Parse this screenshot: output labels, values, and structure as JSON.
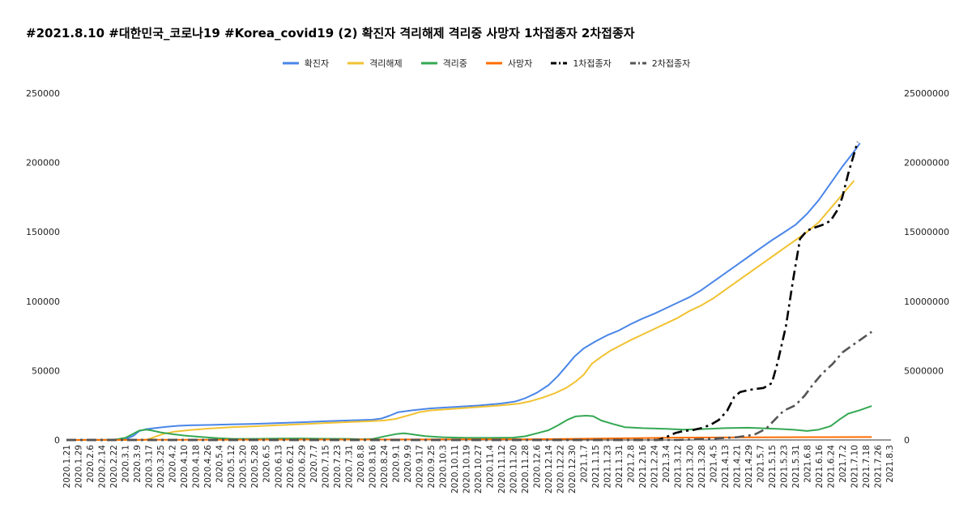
{
  "chart_data": {
    "type": "line",
    "title": "#2021.8.10 #대한민국_코로나19 #Korea_covid19 (2) 확진자 격리해제 격리중 사망자 1차접종자 2차접종자",
    "legend_position": "top",
    "grid": false,
    "x_tick_labels": [
      "2020.1.21",
      "2020.1.29",
      "2020.2.6",
      "2020.2.14",
      "2020.2.22",
      "2020.3.1",
      "2020.3.9",
      "2020.3.17",
      "2020.3.25",
      "2020.4.2",
      "2020.4.10",
      "2020.4.18",
      "2020.4.26",
      "2020.5.4",
      "2020.5.12",
      "2020.5.20",
      "2020.5.28",
      "2020.6.5",
      "2020.6.13",
      "2020.6.21",
      "2020.6.29",
      "2020.7.7",
      "2020.7.15",
      "2020.7.23",
      "2020.7.31",
      "2020.8.8",
      "2020.8.16",
      "2020.8.24",
      "2020.9.1",
      "2020.9.9",
      "2020.9.17",
      "2020.9.25",
      "2020.10.3",
      "2020.10.11",
      "2020.10.19",
      "2020.10.27",
      "2020.11.4",
      "2020.11.12",
      "2020.11.20",
      "2020.11.28",
      "2020.12.6",
      "2020.12.14",
      "2020.12.22",
      "2020.12.30",
      "2021.1.7",
      "2021.1.15",
      "2021.1.23",
      "2021.1.31",
      "2021.2.8",
      "2021.2.16",
      "2021.2.24",
      "2021.3.4",
      "2021.3.12",
      "2021.3.20",
      "2021.3.28",
      "2021.4.5",
      "2021.4.13",
      "2021.4.21",
      "2021.4.29",
      "2021.5.7",
      "2021.5.15",
      "2021.5.23",
      "2021.5.31",
      "2021.6.8",
      "2021.6.16",
      "2021.6.24",
      "2021.7.2",
      "2021.7.10",
      "2021.7.18",
      "2021.7.26",
      "2021.8.3"
    ],
    "y_left": {
      "min": 0,
      "max": 250000,
      "ticks": [
        "0",
        "50000",
        "100000",
        "150000",
        "200000",
        "250000"
      ]
    },
    "y_right": {
      "min": 0,
      "max": 25000000,
      "ticks": [
        "0",
        "5000000",
        "10000000",
        "15000000",
        "20000000",
        "25000000"
      ]
    },
    "series": [
      {
        "name": "확진자",
        "color": "#4a86e8",
        "axis": "left",
        "dash": "solid",
        "points": [
          [
            0,
            0
          ],
          [
            4,
            50
          ],
          [
            5,
            500
          ],
          [
            5.7,
            3000
          ],
          [
            6.2,
            6500
          ],
          [
            6.8,
            7800
          ],
          [
            7.5,
            8500
          ],
          [
            8.5,
            9500
          ],
          [
            9.5,
            10200
          ],
          [
            10.5,
            10600
          ],
          [
            12,
            10800
          ],
          [
            14,
            11200
          ],
          [
            16,
            11600
          ],
          [
            18,
            12200
          ],
          [
            20,
            12800
          ],
          [
            22,
            13500
          ],
          [
            24,
            14100
          ],
          [
            26,
            14600
          ],
          [
            26.8,
            15500
          ],
          [
            27.5,
            17500
          ],
          [
            28.2,
            20000
          ],
          [
            29.5,
            21500
          ],
          [
            31,
            22800
          ],
          [
            33,
            23800
          ],
          [
            35,
            24800
          ],
          [
            37,
            26300
          ],
          [
            38.2,
            27800
          ],
          [
            39,
            30000
          ],
          [
            40,
            34000
          ],
          [
            41,
            39500
          ],
          [
            41.8,
            46000
          ],
          [
            42.5,
            53000
          ],
          [
            43.2,
            60000
          ],
          [
            44,
            66000
          ],
          [
            45,
            71000
          ],
          [
            46,
            75500
          ],
          [
            47,
            79000
          ],
          [
            48,
            83500
          ],
          [
            49,
            87500
          ],
          [
            50,
            91000
          ],
          [
            51,
            95000
          ],
          [
            52,
            99000
          ],
          [
            53,
            103000
          ],
          [
            54,
            108000
          ],
          [
            55,
            114000
          ],
          [
            56,
            120000
          ],
          [
            57,
            126000
          ],
          [
            58,
            132000
          ],
          [
            59,
            138000
          ],
          [
            60,
            144000
          ],
          [
            61,
            149500
          ],
          [
            62,
            155000
          ],
          [
            63,
            163000
          ],
          [
            64,
            173000
          ],
          [
            65,
            185000
          ],
          [
            66,
            197000
          ],
          [
            67,
            208000
          ],
          [
            67.5,
            214000
          ]
        ]
      },
      {
        "name": "격리해제",
        "color": "#f1c232",
        "axis": "left",
        "dash": "solid",
        "points": [
          [
            0,
            0
          ],
          [
            6.5,
            0
          ],
          [
            7,
            500
          ],
          [
            7.6,
            2500
          ],
          [
            8.3,
            4500
          ],
          [
            9.2,
            6000
          ],
          [
            10.5,
            7200
          ],
          [
            12,
            8200
          ],
          [
            14,
            9200
          ],
          [
            16,
            9900
          ],
          [
            18,
            10700
          ],
          [
            20,
            11400
          ],
          [
            22,
            12200
          ],
          [
            24,
            12900
          ],
          [
            26,
            13600
          ],
          [
            27,
            14000
          ],
          [
            28,
            15200
          ],
          [
            29,
            17500
          ],
          [
            30,
            20000
          ],
          [
            31,
            21300
          ],
          [
            33,
            22500
          ],
          [
            35,
            23700
          ],
          [
            37,
            25000
          ],
          [
            38.5,
            26200
          ],
          [
            39.5,
            28000
          ],
          [
            40.5,
            30500
          ],
          [
            41.5,
            33500
          ],
          [
            42.5,
            37500
          ],
          [
            43.3,
            42000
          ],
          [
            44,
            47000
          ],
          [
            44.7,
            55000
          ],
          [
            45.5,
            60000
          ],
          [
            46.3,
            64500
          ],
          [
            47.2,
            68500
          ],
          [
            48,
            72000
          ],
          [
            49,
            76000
          ],
          [
            50,
            80000
          ],
          [
            51,
            84000
          ],
          [
            52,
            88000
          ],
          [
            53,
            93000
          ],
          [
            54,
            97000
          ],
          [
            55,
            102000
          ],
          [
            56,
            108000
          ],
          [
            57,
            114000
          ],
          [
            58,
            120000
          ],
          [
            59,
            126000
          ],
          [
            60,
            132000
          ],
          [
            61,
            138000
          ],
          [
            62,
            144000
          ],
          [
            63,
            150000
          ],
          [
            64,
            157000
          ],
          [
            65,
            167000
          ],
          [
            66,
            177000
          ],
          [
            67,
            187000
          ]
        ]
      },
      {
        "name": "격리중",
        "color": "#34a853",
        "axis": "left",
        "dash": "solid",
        "points": [
          [
            0,
            0
          ],
          [
            4,
            50
          ],
          [
            5,
            1500
          ],
          [
            5.7,
            4500
          ],
          [
            6.2,
            6800
          ],
          [
            6.8,
            7400
          ],
          [
            7.3,
            6800
          ],
          [
            8,
            5500
          ],
          [
            9,
            4200
          ],
          [
            10,
            3200
          ],
          [
            11,
            2500
          ],
          [
            12,
            1800
          ],
          [
            13,
            1200
          ],
          [
            14,
            900
          ],
          [
            16,
            800
          ],
          [
            18,
            1000
          ],
          [
            20,
            1100
          ],
          [
            22,
            900
          ],
          [
            24,
            800
          ],
          [
            25,
            500
          ],
          [
            26,
            700
          ],
          [
            27,
            2500
          ],
          [
            28,
            4200
          ],
          [
            28.7,
            4800
          ],
          [
            29.5,
            4000
          ],
          [
            30.5,
            2800
          ],
          [
            32,
            2000
          ],
          [
            34,
            1500
          ],
          [
            36,
            1500
          ],
          [
            38,
            1700
          ],
          [
            39,
            2600
          ],
          [
            40,
            4800
          ],
          [
            41,
            7000
          ],
          [
            41.8,
            10500
          ],
          [
            42.6,
            14500
          ],
          [
            43.3,
            17000
          ],
          [
            44.2,
            17500
          ],
          [
            44.8,
            17200
          ],
          [
            45.5,
            14000
          ],
          [
            46.5,
            11500
          ],
          [
            47.5,
            9200
          ],
          [
            49,
            8500
          ],
          [
            51,
            8000
          ],
          [
            52.5,
            7400
          ],
          [
            54,
            7800
          ],
          [
            56,
            8500
          ],
          [
            58,
            8800
          ],
          [
            59.5,
            8300
          ],
          [
            61,
            7800
          ],
          [
            62,
            7300
          ],
          [
            63,
            6500
          ],
          [
            64,
            7500
          ],
          [
            65,
            10000
          ],
          [
            65.8,
            15000
          ],
          [
            66.5,
            19000
          ],
          [
            67.5,
            21500
          ],
          [
            68,
            23000
          ],
          [
            68.5,
            24500
          ]
        ]
      },
      {
        "name": "사망자",
        "color": "#ff6d01",
        "axis": "left",
        "dash": "solid",
        "points": [
          [
            0,
            0
          ],
          [
            8,
            100
          ],
          [
            16,
            260
          ],
          [
            24,
            300
          ],
          [
            32,
            400
          ],
          [
            40,
            550
          ],
          [
            46,
            1100
          ],
          [
            52,
            1700
          ],
          [
            58,
            1850
          ],
          [
            64,
            2020
          ],
          [
            68.5,
            2120
          ]
        ]
      },
      {
        "name": "1차접종자",
        "color": "#000000",
        "axis": "right",
        "dash": "dashdot",
        "points": [
          [
            0,
            0
          ],
          [
            50.3,
            0
          ],
          [
            51,
            200000
          ],
          [
            51.8,
            500000
          ],
          [
            52.5,
            650000
          ],
          [
            53.3,
            720000
          ],
          [
            54,
            850000
          ],
          [
            54.8,
            1100000
          ],
          [
            55.5,
            1450000
          ],
          [
            56.2,
            2100000
          ],
          [
            56.8,
            3100000
          ],
          [
            57.3,
            3450000
          ],
          [
            58,
            3600000
          ],
          [
            58.8,
            3700000
          ],
          [
            59.3,
            3750000
          ],
          [
            60,
            4100000
          ],
          [
            60.5,
            5600000
          ],
          [
            61.2,
            8200000
          ],
          [
            61.8,
            11500000
          ],
          [
            62.4,
            14500000
          ],
          [
            63,
            15100000
          ],
          [
            63.6,
            15300000
          ],
          [
            64.3,
            15500000
          ],
          [
            65,
            15800000
          ],
          [
            65.6,
            16600000
          ],
          [
            66,
            17500000
          ],
          [
            66.5,
            19200000
          ],
          [
            67.3,
            21500000
          ]
        ]
      },
      {
        "name": "2차접종자",
        "color": "#555555",
        "axis": "right",
        "dash": "dashdot",
        "points": [
          [
            0,
            0
          ],
          [
            52,
            0
          ],
          [
            53,
            30000
          ],
          [
            55,
            100000
          ],
          [
            57,
            200000
          ],
          [
            58.5,
            380000
          ],
          [
            59.5,
            800000
          ],
          [
            60.3,
            1500000
          ],
          [
            61,
            2100000
          ],
          [
            62,
            2500000
          ],
          [
            62.8,
            3200000
          ],
          [
            63.5,
            4000000
          ],
          [
            64.3,
            4800000
          ],
          [
            65.2,
            5500000
          ],
          [
            66,
            6300000
          ],
          [
            66.8,
            6800000
          ],
          [
            67.5,
            7200000
          ],
          [
            68.5,
            7800000
          ]
        ]
      }
    ]
  }
}
